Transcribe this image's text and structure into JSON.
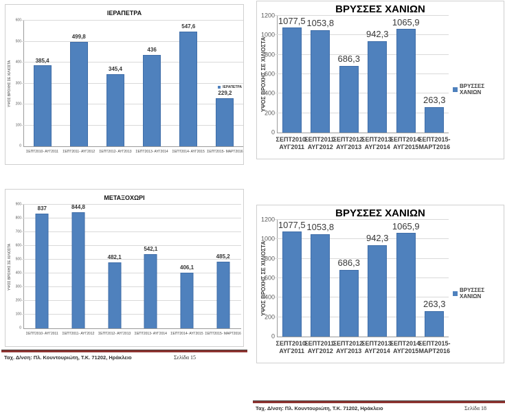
{
  "colors": {
    "bar_fill": "#4f81bd",
    "bar_border": "#3f6da8",
    "gridline": "#d9d9d9",
    "axis_line": "#9a9a9a",
    "chart_border": "#cfcfcf",
    "tick_text": "#595959",
    "footer_rule": "#8e3431"
  },
  "chart_data": [
    {
      "type": "bar",
      "title": "ΙΕΡΑΠΕΤΡΑ",
      "ylabel": "ΥΨΟΣ ΒΡΟΧΗΣ ΣΕ ΧΙΛΙΟΣΤΑ",
      "xlabel": "",
      "legend": "ΙΕΡΑΠΕΤΡΑ",
      "legend_position": "right-overlay",
      "grid": true,
      "ylim": [
        0,
        600
      ],
      "yticks": [
        0,
        100,
        200,
        300,
        400,
        500,
        600
      ],
      "categories": [
        "ΣΕΠΤ2010- ΑΥΓ2011",
        "ΣΕΠΤ2011- ΑΥΓ2012",
        "ΣΕΠΤ2012- ΑΥΓ2013",
        "ΣΕΠΤ2013- ΑΥΓ2014",
        "ΣΕΠΤ2014- ΑΥΓ2015",
        "ΣΕΠΤ2015- ΜΑΡΤ2016"
      ],
      "values": [
        385.4,
        499.8,
        345.4,
        436,
        547.6,
        229.2
      ],
      "value_labels": [
        "385,4",
        "499,8",
        "345,4",
        "436",
        "547,6",
        "229,2"
      ]
    },
    {
      "type": "bar",
      "title": "ΒΡΥΣΣΕΣ ΧΑΝΙΩΝ",
      "ylabel": "ΥΨΟΣ ΒΡΟΧΗΣ ΣΕ ΧΙΛΙΟΣΤΑ",
      "xlabel": "",
      "legend": "ΒΡΥΣΣΕΣ ΧΑΝΙΩΝ",
      "legend_position": "right",
      "grid": true,
      "ylim": [
        0,
        1200
      ],
      "yticks": [
        0,
        200,
        400,
        600,
        800,
        1000,
        1200
      ],
      "categories": [
        "ΣΕΠΤ2010-\nΑΥΓ2011",
        "ΣΕΠΤ2011-\nΑΥΓ2012",
        "ΣΕΠΤ2012-\nΑΥΓ2013",
        "ΣΕΠΤ2013-\nΑΥΓ2014",
        "ΣΕΠΤ2014-\nΑΥΓ2015",
        "ΣΕΠΤ2015-\nΜΑΡΤ2016"
      ],
      "values": [
        1077.5,
        1053.8,
        686.3,
        942.3,
        1065.9,
        263.3
      ],
      "value_labels": [
        "1077,5",
        "1053,8",
        "686,3",
        "942,3",
        "1065,9",
        "263,3"
      ]
    },
    {
      "type": "bar",
      "title": "ΜΕΤΑΞΟΧΩΡΙ",
      "ylabel": "ΥΨΟΣ ΒΡΟΧΗΣ ΣΕ ΧΙΛΙΟΣΤΑ",
      "xlabel": "",
      "legend": "",
      "legend_position": "none",
      "grid": true,
      "ylim": [
        0,
        900
      ],
      "yticks": [
        0,
        100,
        200,
        300,
        400,
        500,
        600,
        700,
        800,
        900
      ],
      "categories": [
        "ΣΕΠΤ2010- ΑΥΓ2011",
        "ΣΕΠΤ2011- ΑΥΓ2012",
        "ΣΕΠΤ2012- ΑΥΓ2013",
        "ΣΕΠΤ2013- ΑΥΓ2014",
        "ΣΕΠΤ2014- ΑΥΓ2015",
        "ΣΕΠΤ2015- ΜΑΡΤ2016"
      ],
      "values": [
        837,
        844.8,
        482.1,
        542.1,
        406.1,
        485.2
      ],
      "value_labels": [
        "837",
        "844,8",
        "482,1",
        "542,1",
        "406,1",
        "485,2"
      ]
    },
    {
      "type": "bar",
      "title": "ΒΡΥΣΣΕΣ ΧΑΝΙΩΝ",
      "ylabel": "ΥΨΟΣ ΒΡΟΧΗΣ ΣΕ ΧΙΛΙΟΣΤΑ",
      "xlabel": "",
      "legend": "ΒΡΥΣΣΕΣ ΧΑΝΙΩΝ",
      "legend_position": "right",
      "grid": true,
      "ylim": [
        0,
        1200
      ],
      "yticks": [
        0,
        200,
        400,
        600,
        800,
        1000,
        1200
      ],
      "categories": [
        "ΣΕΠΤ2010-\nΑΥΓ2011",
        "ΣΕΠΤ2011-\nΑΥΓ2012",
        "ΣΕΠΤ2012-\nΑΥΓ2013",
        "ΣΕΠΤ2013-\nΑΥΓ2014",
        "ΣΕΠΤ2014-\nΑΥΓ2015",
        "ΣΕΠΤ2015-\nΜΑΡΤ2016"
      ],
      "values": [
        1077.5,
        1053.8,
        686.3,
        942.3,
        1065.9,
        263.3
      ],
      "value_labels": [
        "1077,5",
        "1053,8",
        "686,3",
        "942,3",
        "1065,9",
        "263,3"
      ]
    }
  ],
  "footers": [
    {
      "address": "Ταχ. Δ/νση: Πλ. Κουντουριώτη, Τ.Κ. 71202, Ηράκλειο",
      "page_label": "Σελίδα 15"
    },
    {
      "address": "Ταχ. Δ/νση: Πλ. Κουντουριώτη, Τ.Κ. 71202, Ηράκλειο",
      "page_label": "Σελίδα 18"
    }
  ]
}
